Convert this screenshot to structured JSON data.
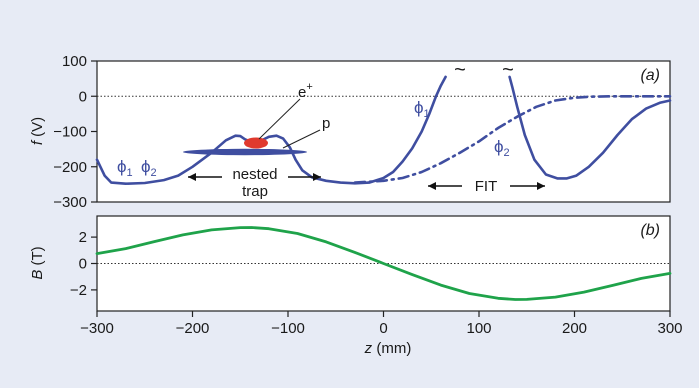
{
  "chart_data": [
    {
      "type": "line",
      "panel_label": "(a)",
      "ylabel_var": "f",
      "ylabel_unit": "(V)",
      "xlim": [
        -300,
        300
      ],
      "ylim": [
        -300,
        100
      ],
      "yticks": [
        "100",
        "0",
        "−100",
        "−200",
        "−300"
      ],
      "grid": false,
      "reference_line_y": 0,
      "series": [
        {
          "name": "ϕ1",
          "label_base": "ϕ",
          "label_sub": "1",
          "style": "solid",
          "x": [
            -300,
            -292,
            -285,
            -270,
            -250,
            -230,
            -215,
            -200,
            -180,
            -165,
            -155,
            -150,
            -145,
            -138,
            -130,
            -120,
            -112,
            -105,
            -98,
            -92,
            -85,
            -75,
            -60,
            -45,
            -30,
            -15,
            0,
            10,
            20,
            30,
            40,
            48,
            55,
            60,
            65
          ],
          "y": [
            -180,
            -225,
            -245,
            -248,
            -246,
            -238,
            -225,
            -200,
            -160,
            -125,
            -112,
            -113,
            -122,
            -130,
            -128,
            -115,
            -112,
            -120,
            -145,
            -180,
            -210,
            -230,
            -240,
            -245,
            -247,
            -245,
            -232,
            -215,
            -185,
            -148,
            -100,
            -50,
            0,
            30,
            55
          ]
        },
        {
          "name": "ϕ2",
          "label_base": "ϕ",
          "label_sub": "2",
          "style": "solid",
          "x": [
            132,
            135,
            140,
            148,
            158,
            170,
            182,
            192,
            202,
            215,
            230,
            245,
            260,
            275,
            290,
            300
          ],
          "y": [
            55,
            25,
            -30,
            -110,
            -180,
            -222,
            -233,
            -233,
            -225,
            -200,
            -160,
            -110,
            -65,
            -35,
            -18,
            -12
          ]
        },
        {
          "name": "ϕ2",
          "style": "dash-dot",
          "x": [
            -30,
            0,
            20,
            40,
            60,
            80,
            100,
            120,
            140,
            160,
            180,
            200,
            220,
            240,
            260,
            280,
            300
          ],
          "y": [
            -245,
            -240,
            -232,
            -215,
            -190,
            -160,
            -128,
            -90,
            -58,
            -30,
            -12,
            -4,
            -1,
            0,
            0,
            0,
            0
          ]
        }
      ],
      "annotations": {
        "positron": "e",
        "positron_sup": "+",
        "proton": "p",
        "nested_trap_line1": "nested",
        "nested_trap_line2": "trap",
        "fit": "FIT",
        "break_mark": "~"
      },
      "colors": {
        "phi_curves": "#3f4ea0",
        "positron": "#e03a2e",
        "reference_line": "#333333"
      }
    },
    {
      "type": "line",
      "panel_label": "(b)",
      "ylabel_var": "B",
      "ylabel_unit": "(T)",
      "xlabel_var": "z",
      "xlabel_unit": "(mm)",
      "xlim": [
        -300,
        300
      ],
      "ylim": [
        -3.6,
        3.6
      ],
      "yticks": [
        "2",
        "0",
        "−2"
      ],
      "xticks": [
        "−300",
        "−200",
        "−100",
        "0",
        "100",
        "200",
        "300"
      ],
      "grid": false,
      "reference_line_y": 0,
      "series": [
        {
          "style": "solid",
          "x": [
            -300,
            -270,
            -240,
            -210,
            -180,
            -150,
            -138,
            -120,
            -90,
            -60,
            -30,
            0,
            30,
            60,
            90,
            120,
            138,
            150,
            180,
            210,
            240,
            270,
            300
          ],
          "y": [
            0.75,
            1.13,
            1.66,
            2.17,
            2.55,
            2.72,
            2.73,
            2.64,
            2.27,
            1.64,
            0.84,
            0.0,
            -0.84,
            -1.64,
            -2.27,
            -2.64,
            -2.73,
            -2.72,
            -2.55,
            -2.17,
            -1.66,
            -1.13,
            -0.75
          ]
        }
      ],
      "colors": {
        "field_curve": "#1fa34a",
        "reference_line": "#333333"
      }
    }
  ]
}
